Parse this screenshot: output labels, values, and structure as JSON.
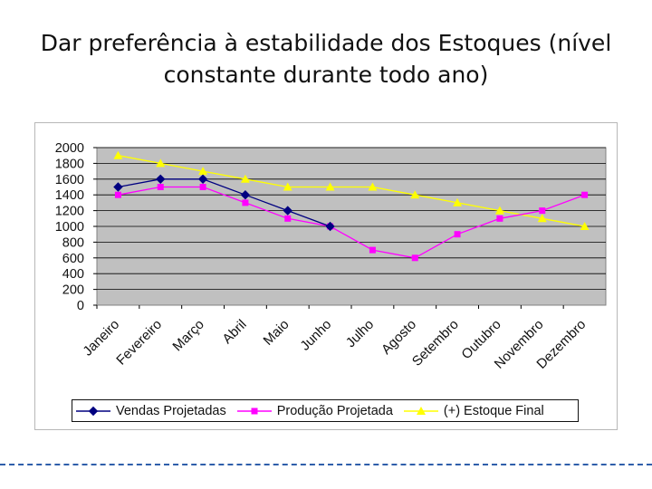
{
  "slide": {
    "title_line1": "Dar preferência à estabilidade dos Estoques (nível",
    "title_line2": "constante durante todo ano)"
  },
  "chart_data": {
    "type": "line",
    "categories": [
      "Janeiro",
      "Fevereiro",
      "Março",
      "Abril",
      "Maio",
      "Junho",
      "Julho",
      "Agosto",
      "Setembro",
      "Outubro",
      "Novembro",
      "Dezembro"
    ],
    "ylim": [
      0,
      2000
    ],
    "yticks": [
      0,
      200,
      400,
      600,
      800,
      1000,
      1200,
      1400,
      1600,
      1800,
      2000
    ],
    "grid": true,
    "legend_position": "bottom",
    "plot_background": "#c0c0c0",
    "series": [
      {
        "name": "Vendas Projetadas",
        "color": "#000080",
        "marker": "diamond",
        "values": [
          1500,
          1600,
          1600,
          1400,
          1200,
          1000,
          null,
          null,
          null,
          null,
          null,
          null
        ]
      },
      {
        "name": "Produção Projetada",
        "color": "#ff00ff",
        "marker": "square",
        "values": [
          1400,
          1500,
          1500,
          1300,
          1100,
          1000,
          700,
          600,
          900,
          1100,
          1200,
          1400
        ]
      },
      {
        "name": "(+) Estoque Final",
        "color": "#ffff00",
        "marker": "triangle",
        "values": [
          1900,
          1800,
          1700,
          1600,
          1500,
          1500,
          1500,
          1400,
          1300,
          1200,
          1100,
          1000
        ]
      }
    ]
  }
}
